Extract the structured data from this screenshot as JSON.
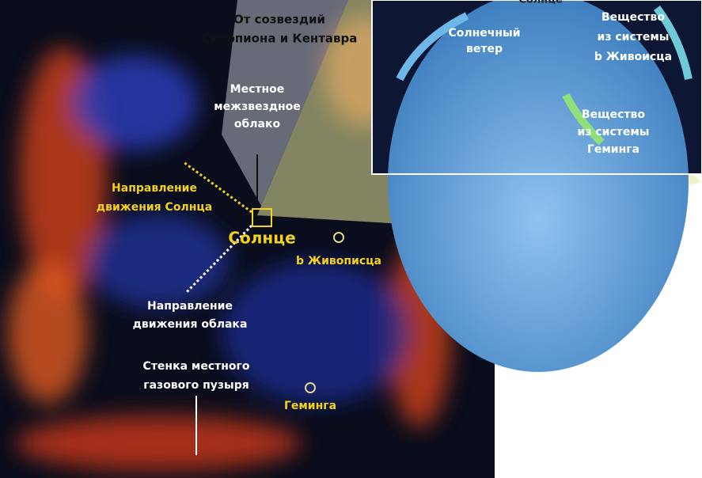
{
  "labels": [
    {
      "lines": [
        "Солнце"
      ]
    },
    {
      "lines": [
        "Солнечный",
        "ветер"
      ]
    },
    {
      "lines": [
        "Вещество",
        "из системы",
        "b Живоисца"
      ]
    },
    {
      "lines": [
        "Вещество",
        "из системы",
        "Геминга"
      ]
    },
    {
      "lines": [
        "От созвездий",
        "Скорпиона и Кентавра"
      ]
    },
    {
      "lines": [
        "Местное",
        "межзвездное",
        "облако"
      ]
    },
    {
      "lines": [
        "Направление",
        "движения Солнца"
      ]
    },
    {
      "lines": [
        "Солнце"
      ]
    },
    {
      "lines": [
        "b Живописца"
      ]
    },
    {
      "lines": [
        "Направление",
        "движения облака"
      ]
    },
    {
      "lines": [
        "Стенка местного",
        "газового пузыря"
      ]
    },
    {
      "lines": [
        "Геминга"
      ]
    }
  ]
}
